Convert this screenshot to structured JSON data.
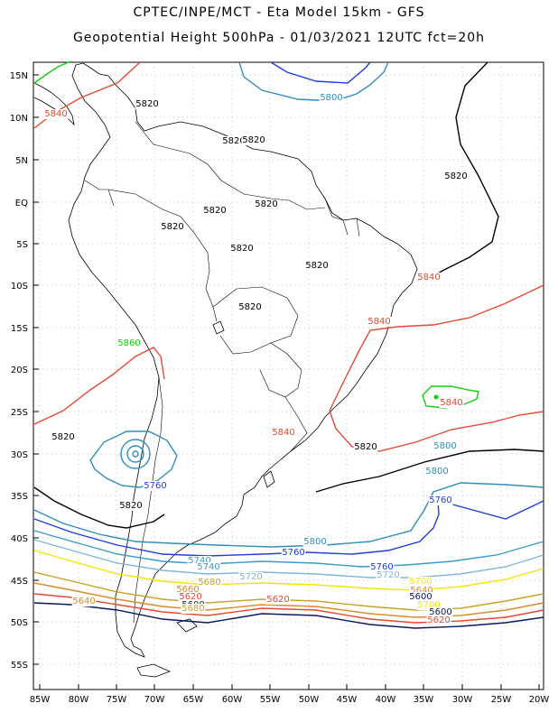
{
  "header": {
    "line1": "CPTEC/INPE/MCT -  Eta Model 15km - GFS",
    "line2": "Geopotential Height 500hPa - 01/03/2021 12UTC fct=20h"
  },
  "axes": {
    "lat_labels": [
      "15N",
      "10N",
      "5N",
      "EQ",
      "5S",
      "10S",
      "15S",
      "20S",
      "25S",
      "30S",
      "35S",
      "40S",
      "45S",
      "50S",
      "55S"
    ],
    "lon_labels": [
      "85W",
      "80W",
      "75W",
      "70W",
      "65W",
      "60W",
      "55W",
      "50W",
      "45W",
      "40W",
      "35W",
      "30W",
      "25W",
      "20W"
    ]
  },
  "colors": {
    "c5600": "#0a1a5c",
    "c5620": "#e34a33",
    "c5640": "#d98c2a",
    "c5660": "#c9a227",
    "c5700": "#f2e600",
    "c5720": "#7fb6d9",
    "c5740": "#3a9ac9",
    "c5760": "#1f3fd6",
    "c5800": "#2f8fb8",
    "c5820": "#000000",
    "c5840": "#e34a33",
    "c5860": "#10d010",
    "land": "#000000"
  },
  "contour_labels": [
    {
      "text": "5840",
      "color": "#e34a33"
    },
    {
      "text": "5820",
      "color": "#000000"
    },
    {
      "text": "5800",
      "color": "#2f8fb8"
    },
    {
      "text": "5820",
      "color": "#000000"
    },
    {
      "text": "5820",
      "color": "#000000"
    },
    {
      "text": "5820",
      "color": "#000000"
    },
    {
      "text": "5820",
      "color": "#000000"
    },
    {
      "text": "5820",
      "color": "#000000"
    },
    {
      "text": "5820",
      "color": "#000000"
    },
    {
      "text": "5820",
      "color": "#000000"
    },
    {
      "text": "5820",
      "color": "#000000"
    },
    {
      "text": "5820",
      "color": "#000000"
    },
    {
      "text": "5840",
      "color": "#e34a33"
    },
    {
      "text": "5840",
      "color": "#e34a33"
    },
    {
      "text": "5860",
      "color": "#10d010"
    },
    {
      "text": "5840",
      "color": "#e34a33"
    },
    {
      "text": "5820",
      "color": "#000000"
    },
    {
      "text": "5840",
      "color": "#e34a33"
    },
    {
      "text": "5820",
      "color": "#000000"
    },
    {
      "text": "5800",
      "color": "#2f8fb8"
    },
    {
      "text": "5800",
      "color": "#2f8fb8"
    },
    {
      "text": "5760",
      "color": "#1f3fd6"
    },
    {
      "text": "5820",
      "color": "#000000"
    },
    {
      "text": "5800",
      "color": "#2f8fb8"
    },
    {
      "text": "5760",
      "color": "#1f3fd6"
    },
    {
      "text": "5760",
      "color": "#1f3fd6"
    },
    {
      "text": "5740",
      "color": "#3a9ac9"
    },
    {
      "text": "5760",
      "color": "#1f3fd6"
    },
    {
      "text": "5740",
      "color": "#3a9ac9"
    },
    {
      "text": "5720",
      "color": "#7fb6d9"
    },
    {
      "text": "5720",
      "color": "#7fb6d9"
    },
    {
      "text": "5700",
      "color": "#f2e600"
    },
    {
      "text": "5680",
      "color": "#c9a227"
    },
    {
      "text": "5660",
      "color": "#d98c2a"
    },
    {
      "text": "5640",
      "color": "#d98c2a"
    },
    {
      "text": "5620",
      "color": "#e34a33"
    },
    {
      "text": "5600",
      "color": "#0a1a5c"
    },
    {
      "text": "5600",
      "color": "#0a1a5c"
    },
    {
      "text": "5700",
      "color": "#f2e600"
    },
    {
      "text": "5680",
      "color": "#c9a227"
    },
    {
      "text": "5640",
      "color": "#d98c2a"
    },
    {
      "text": "5620",
      "color": "#e34a33"
    },
    {
      "text": "5600",
      "color": "#0a1a5c"
    },
    {
      "text": "5620",
      "color": "#e34a33"
    }
  ]
}
